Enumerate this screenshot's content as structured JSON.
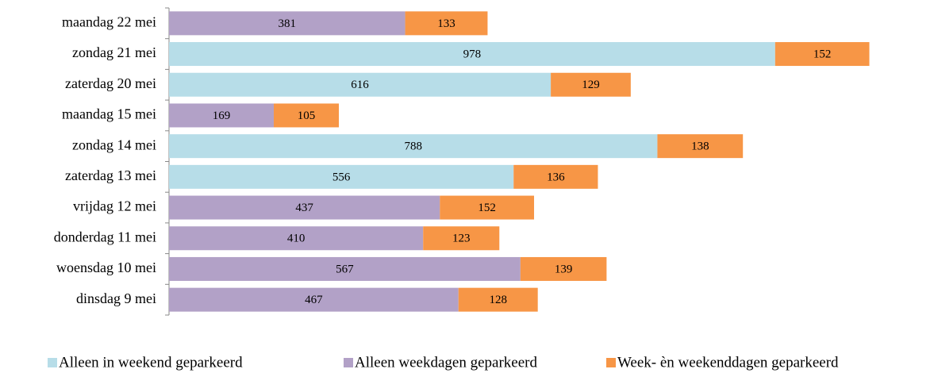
{
  "chart_data": {
    "type": "bar",
    "orientation": "horizontal",
    "stacked": true,
    "categories": [
      "maandag 22 mei",
      "zondag 21 mei",
      "zaterdag 20 mei",
      "maandag 15 mei",
      "zondag 14 mei",
      "zaterdag 13 mei",
      "vrijdag 12 mei",
      "donderdag 11 mei",
      "woensdag 10 mei",
      "dinsdag 9 mei"
    ],
    "series": [
      {
        "name": "Alleen in weekend geparkeerd",
        "color": "#b7dde8",
        "values": [
          null,
          978,
          616,
          null,
          788,
          556,
          null,
          null,
          null,
          null
        ]
      },
      {
        "name": "Alleen weekdagen geparkeerd",
        "color": "#b2a1c7",
        "values": [
          381,
          null,
          null,
          169,
          null,
          null,
          437,
          410,
          567,
          467
        ]
      },
      {
        "name": "Week- èn weekenddagen geparkeerd",
        "color": "#f79646",
        "values": [
          133,
          152,
          129,
          105,
          138,
          136,
          152,
          123,
          139,
          128
        ]
      }
    ],
    "legend": "bottom"
  }
}
